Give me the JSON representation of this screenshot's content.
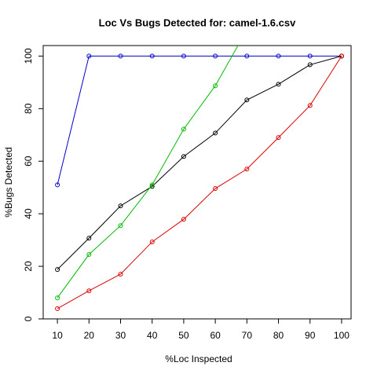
{
  "chart_data": {
    "type": "line",
    "title": "Loc Vs Bugs Detected for: camel-1.6.csv",
    "xlabel": "%Loc Inspected",
    "ylabel": "%Bugs Detected",
    "x": [
      10,
      20,
      30,
      40,
      50,
      60,
      70,
      80,
      90,
      100
    ],
    "series": [
      {
        "color": "#0000cc",
        "values": [
          51,
          100,
          100,
          100,
          100,
          100,
          100,
          100,
          100,
          100
        ]
      },
      {
        "color": "#000000",
        "values": [
          18.8,
          30.7,
          43,
          50.4,
          61.8,
          70.7,
          83.3,
          89.3,
          96.7,
          100
        ]
      },
      {
        "color": "#00bb00",
        "values": [
          8,
          24.5,
          35.5,
          51,
          72.2,
          88.7,
          110,
          null,
          null,
          null
        ]
      },
      {
        "color": "#dd0000",
        "values": [
          3.9,
          10.7,
          17,
          29.3,
          37.9,
          49.6,
          57,
          69,
          81.2,
          100
        ]
      }
    ],
    "xlim": [
      5.5,
      103
    ],
    "ylim": [
      0,
      104
    ],
    "xticks": [
      10,
      20,
      30,
      40,
      50,
      60,
      70,
      80,
      90,
      100
    ],
    "yticks": [
      0,
      20,
      40,
      60,
      80,
      100
    ]
  }
}
